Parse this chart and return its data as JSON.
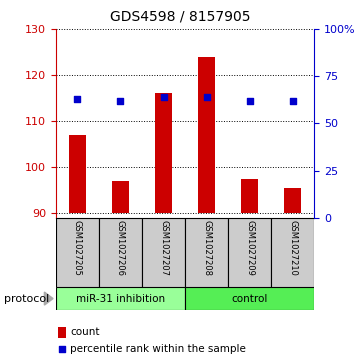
{
  "title": "GDS4598 / 8157905",
  "samples": [
    "GSM1027205",
    "GSM1027206",
    "GSM1027207",
    "GSM1027208",
    "GSM1027209",
    "GSM1027210"
  ],
  "count_values": [
    107,
    97,
    116,
    124,
    97.5,
    95.5
  ],
  "percentile_values": [
    63,
    62,
    64,
    64,
    62,
    62
  ],
  "ylim_left": [
    89,
    130
  ],
  "ylim_right": [
    0,
    100
  ],
  "yticks_left": [
    90,
    100,
    110,
    120,
    130
  ],
  "yticks_right": [
    0,
    25,
    50,
    75,
    100
  ],
  "bar_color": "#cc0000",
  "dot_color": "#0000cc",
  "bar_bottom": 90,
  "groups": [
    {
      "label": "miR-31 inhibition",
      "color": "#99ff99"
    },
    {
      "label": "control",
      "color": "#55ee55"
    }
  ],
  "protocol_label": "protocol",
  "legend_count_label": "count",
  "legend_pct_label": "percentile rank within the sample",
  "background_color": "#ffffff",
  "sample_box_color": "#cccccc",
  "left_axis_color": "#cc0000",
  "right_axis_color": "#0000cc"
}
